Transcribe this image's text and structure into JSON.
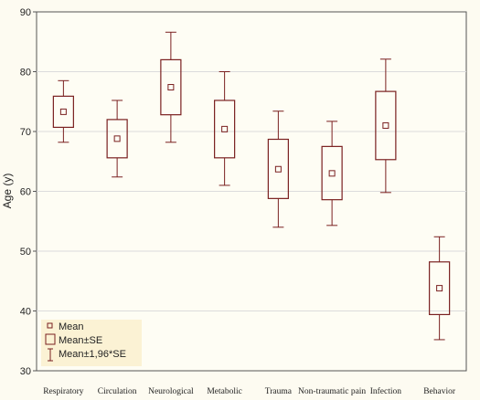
{
  "chart_data": {
    "type": "boxplot",
    "ylabel": "Age (y)",
    "xlabel": "",
    "ylim": [
      30,
      90
    ],
    "yticks": [
      30,
      40,
      50,
      60,
      70,
      80,
      90
    ],
    "grid": "horizontal",
    "legend_position": "bottom-left",
    "colors": {
      "mark": "#7a2020",
      "grid": "#dcdcdc",
      "plot_bg": "#fefdf4",
      "legend_bg": "#fbf2d4"
    },
    "categories": [
      "Respiratory",
      "Circulation",
      "Neurological",
      "Metabolic",
      "Trauma",
      "Non-traumatic pain",
      "Infection",
      "Behavior"
    ],
    "mean": [
      73.3,
      68.8,
      77.4,
      70.4,
      63.7,
      63.0,
      71.0,
      43.8
    ],
    "se_low": [
      70.7,
      65.6,
      72.8,
      65.6,
      58.8,
      58.6,
      65.3,
      39.4
    ],
    "se_high": [
      75.9,
      72.0,
      82.0,
      75.2,
      68.7,
      67.5,
      76.7,
      48.2
    ],
    "ci_low": [
      68.2,
      62.4,
      68.2,
      61.0,
      54.0,
      54.3,
      59.8,
      35.2
    ],
    "ci_high": [
      78.5,
      75.2,
      86.6,
      80.0,
      73.4,
      71.7,
      82.1,
      52.4
    ],
    "legend": [
      "Mean",
      "Mean±SE",
      "Mean±1,96*SE"
    ]
  }
}
